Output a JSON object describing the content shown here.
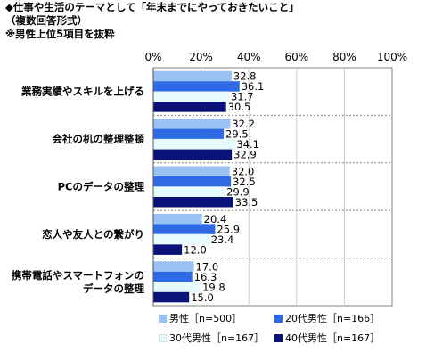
{
  "title_lines": [
    "◆仕事や生活のテーマとして「年末までにやっておきたいこと」",
    "（複数回答形式）",
    "※男性上位5項目を抜粋"
  ],
  "colors": {
    "s1": "#99c2f2",
    "s2": "#2f6ae6",
    "s3": "#e6fbfd",
    "s4": "#0a1178"
  },
  "chart_data": {
    "type": "bar",
    "orientation": "horizontal",
    "categories": [
      [
        "業務実績やスキルを上げる"
      ],
      [
        "会社の机の整理整頓"
      ],
      [
        "PCのデータの整理"
      ],
      [
        "恋人や友人との繋がり"
      ],
      [
        "携帯電話やスマートフォンの",
        "データの整理"
      ]
    ],
    "series": [
      {
        "name": "男性［n=500］",
        "values": [
          32.8,
          32.2,
          32.0,
          20.4,
          17.0
        ]
      },
      {
        "name": "20代男性［n=166］",
        "values": [
          36.1,
          29.5,
          32.5,
          25.9,
          16.3
        ]
      },
      {
        "name": "30代男性［n=167］",
        "values": [
          31.7,
          34.1,
          29.9,
          23.4,
          19.8
        ]
      },
      {
        "name": "40代男性［n=167］",
        "values": [
          30.5,
          32.9,
          33.5,
          12.0,
          15.0
        ]
      }
    ],
    "xlim": [
      0,
      100
    ],
    "xticks": [
      "0%",
      "20%",
      "40%",
      "60%",
      "80%",
      "100%"
    ],
    "tick_values": [
      0,
      20,
      40,
      60,
      80,
      100
    ],
    "legend_position": "bottom"
  }
}
